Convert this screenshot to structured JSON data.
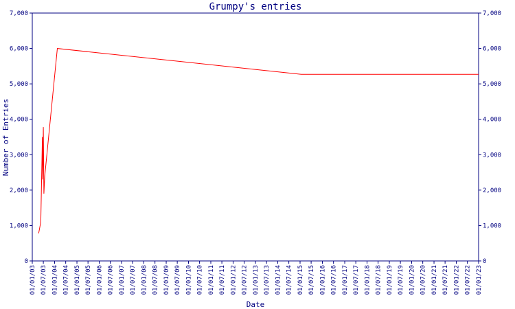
{
  "chart_data": {
    "type": "line",
    "title": "Grumpy's entries",
    "xlabel": "Date",
    "ylabel": "Number of Entries",
    "ylim": [
      0,
      7000
    ],
    "y_ticks": [
      "0",
      "1,000",
      "2,000",
      "3,000",
      "4,000",
      "5,000",
      "6,000",
      "7,000"
    ],
    "y_tick_values": [
      0,
      1000,
      2000,
      3000,
      4000,
      5000,
      6000,
      7000
    ],
    "x_range": [
      "2003-01-01",
      "2023-01-01"
    ],
    "x_ticks": [
      "01/01/03",
      "01/07/03",
      "01/01/04",
      "01/07/04",
      "01/01/05",
      "01/07/05",
      "01/01/06",
      "01/07/06",
      "01/01/07",
      "01/07/07",
      "01/01/08",
      "01/07/08",
      "01/01/09",
      "01/07/09",
      "01/01/10",
      "01/07/10",
      "01/01/11",
      "01/07/11",
      "01/01/12",
      "01/07/12",
      "01/01/13",
      "01/07/13",
      "01/01/14",
      "01/07/14",
      "01/01/15",
      "01/07/15",
      "01/01/16",
      "01/07/16",
      "01/01/17",
      "01/07/17",
      "01/01/18",
      "01/07/18",
      "01/01/19",
      "01/07/19",
      "01/01/20",
      "01/07/20",
      "01/01/21",
      "01/07/21",
      "01/01/22",
      "01/07/22",
      "01/01/23"
    ],
    "grid": false,
    "series": [
      {
        "color": "#ff0000",
        "x": [
          "2003-04-15",
          "2003-05-20",
          "2003-06-15",
          "2003-06-20",
          "2003-07-01",
          "2003-07-10",
          "2003-07-25",
          "2004-02-15",
          "2015-01-20",
          "2023-01-01"
        ],
        "y": [
          780,
          1100,
          3500,
          2300,
          3780,
          1900,
          2400,
          6000,
          5270,
          5270
        ]
      }
    ]
  }
}
